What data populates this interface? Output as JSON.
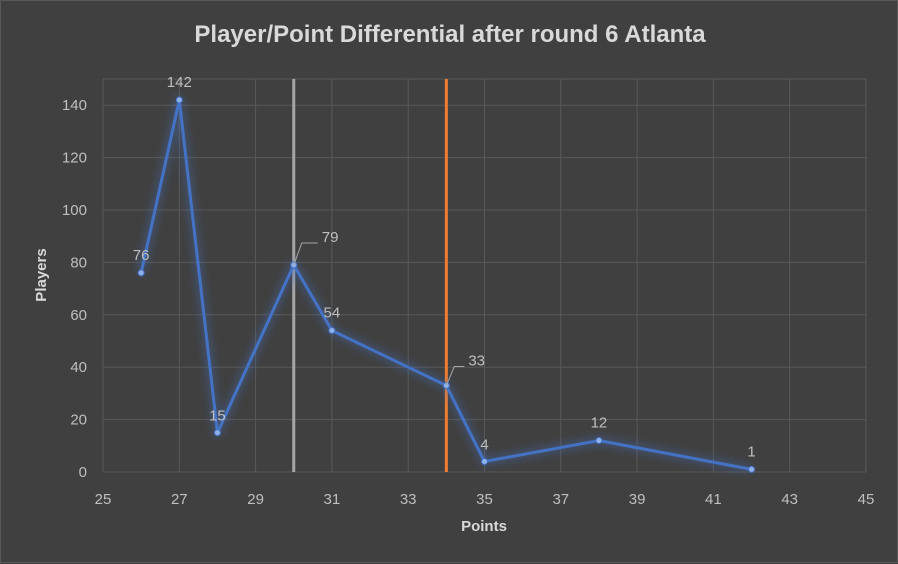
{
  "chart_data": {
    "type": "scatter",
    "title": "Player/Point Differential after round 6 Atlanta",
    "xlabel": "Points",
    "ylabel": "Players",
    "xlim": [
      25,
      45
    ],
    "ylim": [
      0,
      150
    ],
    "x_ticks": [
      25,
      27,
      29,
      31,
      33,
      35,
      37,
      39,
      41,
      43,
      45
    ],
    "y_ticks": [
      0,
      20,
      40,
      60,
      80,
      100,
      120,
      140
    ],
    "grid": true,
    "series": [
      {
        "points": [
          {
            "x": 26,
            "y": 76
          },
          {
            "x": 27,
            "y": 142
          },
          {
            "x": 28,
            "y": 15
          },
          {
            "x": 30,
            "y": 79
          },
          {
            "x": 31,
            "y": 54
          },
          {
            "x": 34,
            "y": 33
          },
          {
            "x": 35,
            "y": 4
          },
          {
            "x": 38,
            "y": 12
          },
          {
            "x": 42,
            "y": 1
          }
        ],
        "data_labels": [
          "76",
          "142",
          "15",
          "79",
          "54",
          "33",
          "4",
          "12",
          "1"
        ],
        "color": "#4472c4"
      }
    ],
    "reference_lines": [
      {
        "x": 30,
        "color": "#a6a6a6"
      },
      {
        "x": 34,
        "color": "#ed7d31"
      }
    ]
  },
  "colors": {
    "background": "#404040",
    "gridline": "#595959",
    "line": "#4472c4",
    "glow": "#4472c4"
  }
}
